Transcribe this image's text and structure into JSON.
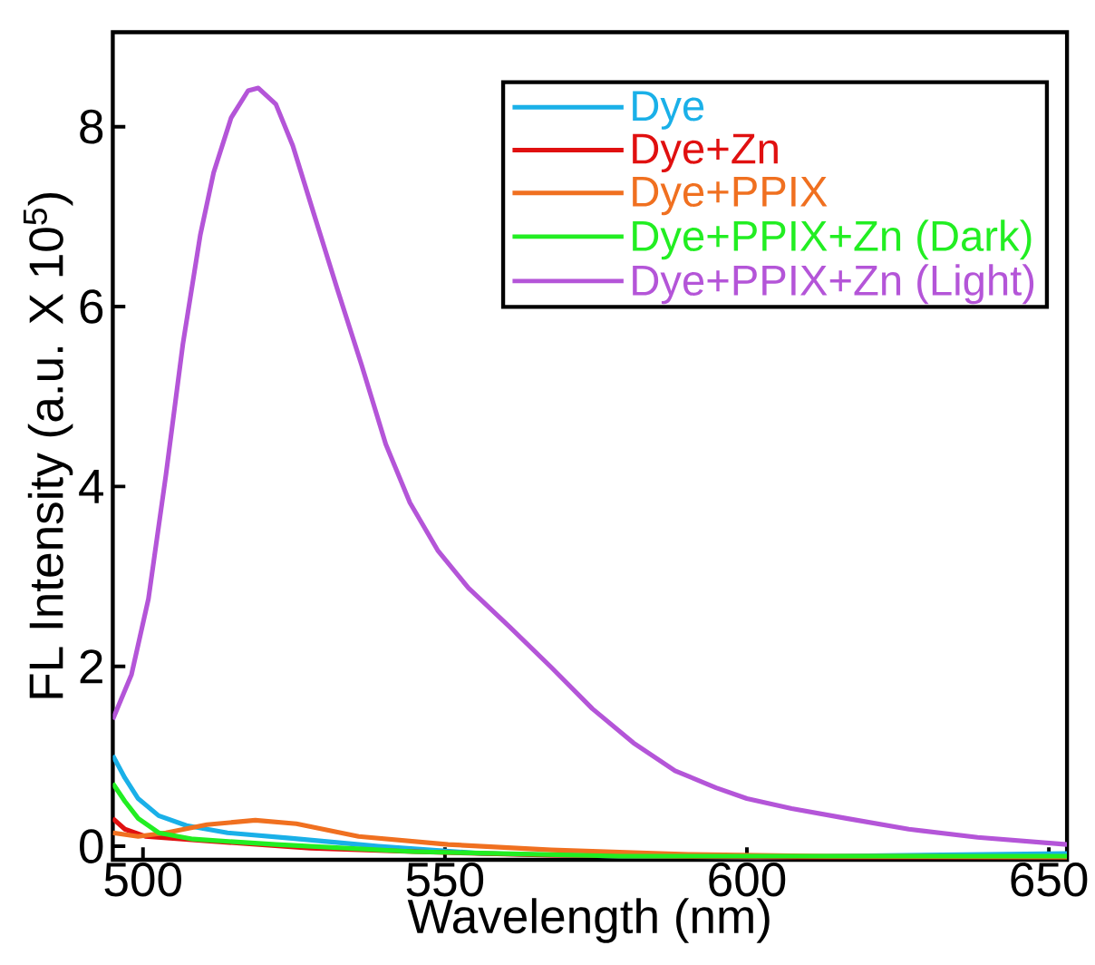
{
  "chart_data": {
    "type": "line",
    "xlabel": "Wavelength (nm)",
    "ylabel": "FL Intensity (a.u. X 10$^{5}$)",
    "xlim": [
      495,
      653
    ],
    "ylim": [
      -0.15,
      9.05
    ],
    "xticks": [
      500,
      550,
      600,
      650
    ],
    "yticks": [
      0,
      2,
      4,
      6,
      8
    ],
    "legend": "top right",
    "grid": false,
    "marker": "none",
    "line_style": "solid",
    "series": [
      {
        "name": "Dye",
        "color": "#1ab0e8",
        "x": [
          495,
          497,
          499.2,
          502.6,
          507.2,
          514,
          524.3,
          539,
          556,
          579,
          601.7,
          653
        ],
        "values": [
          1.01,
          0.76,
          0.53,
          0.34,
          0.23,
          0.15,
          0.09,
          0.0,
          -0.08,
          -0.11,
          -0.12,
          -0.08
        ]
      },
      {
        "name": "Dye+Zn",
        "color": "#e01010",
        "x": [
          495,
          497,
          500.4,
          510.6,
          527.7,
          544.8,
          567.6,
          601.7,
          653
        ],
        "values": [
          0.31,
          0.19,
          0.11,
          0.06,
          -0.02,
          -0.06,
          -0.1,
          -0.12,
          -0.12
        ]
      },
      {
        "name": "Dye+PPIX",
        "color": "#f07020",
        "x": [
          495,
          499.2,
          503.8,
          510.6,
          518.6,
          525.4,
          535.7,
          550.5,
          567.6,
          590.3,
          613.1,
          653
        ],
        "values": [
          0.15,
          0.11,
          0.15,
          0.24,
          0.29,
          0.25,
          0.11,
          0.02,
          -0.04,
          -0.09,
          -0.11,
          -0.12
        ]
      },
      {
        "name": "Dye+PPIX+Zn (Dark)",
        "color": "#22ee22",
        "x": [
          495,
          497,
          499.2,
          502.6,
          508.3,
          522,
          544.8,
          579,
          653
        ],
        "values": [
          0.7,
          0.5,
          0.31,
          0.15,
          0.08,
          0.02,
          -0.06,
          -0.11,
          -0.11
        ]
      },
      {
        "name": "Dye+PPIX+Zn (Light)",
        "color": "#b455d8",
        "x": [
          495,
          498.1,
          500.9,
          503.8,
          506.6,
          509.5,
          511.7,
          514.6,
          517.4,
          519.1,
          522,
          524.8,
          528.3,
          532.2,
          536.2,
          540.2,
          544.2,
          548.8,
          553.9,
          560.7,
          567.6,
          574.4,
          581.2,
          588.1,
          594.9,
          600,
          607.4,
          616.5,
          626.8,
          638.2,
          653
        ],
        "values": [
          1.41,
          1.91,
          2.75,
          4.13,
          5.58,
          6.8,
          7.49,
          8.1,
          8.4,
          8.43,
          8.25,
          7.79,
          7.03,
          6.19,
          5.35,
          4.47,
          3.82,
          3.29,
          2.87,
          2.44,
          1.99,
          1.53,
          1.15,
          0.84,
          0.65,
          0.53,
          0.42,
          0.31,
          0.19,
          0.1,
          0.02
        ]
      }
    ]
  }
}
